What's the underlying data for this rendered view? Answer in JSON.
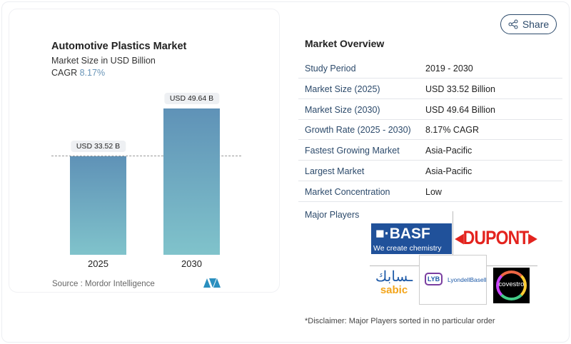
{
  "share_label": "Share",
  "chart_data": {
    "type": "bar",
    "title": "Automotive Plastics Market",
    "subtitle": "Market Size in USD Billion",
    "cagr_label": "CAGR",
    "cagr_value": "8.17%",
    "categories": [
      "2025",
      "2030"
    ],
    "values": [
      33.52,
      49.64
    ],
    "data_labels": [
      "USD 33.52 B",
      "USD 49.64 B"
    ],
    "ylim": [
      0,
      49.64
    ],
    "source": "Source :  Mordor Intelligence"
  },
  "overview": {
    "title": "Market Overview",
    "rows": [
      {
        "k": "Study Period",
        "v": "2019 - 2030"
      },
      {
        "k": "Market Size (2025)",
        "v": "USD 33.52 Billion"
      },
      {
        "k": "Market Size (2030)",
        "v": "USD 49.64 Billion"
      },
      {
        "k": "Growth Rate (2025 - 2030)",
        "v": "8.17% CAGR"
      },
      {
        "k": "Fastest Growing Market",
        "v": "Asia-Pacific"
      },
      {
        "k": "Largest Market",
        "v": "Asia-Pacific"
      },
      {
        "k": "Market Concentration",
        "v": "Low"
      }
    ],
    "major_players": "Major Players",
    "logos": {
      "basf": "BASF",
      "basf_tag": "We create chemistry",
      "dupont": "DUPONT",
      "sabic": "sabic",
      "lyb": "LYB",
      "lyondell": "LyondellBasell",
      "covestro": "covestro"
    },
    "disclaimer": "*Disclaimer: Major Players sorted in no particular order"
  }
}
